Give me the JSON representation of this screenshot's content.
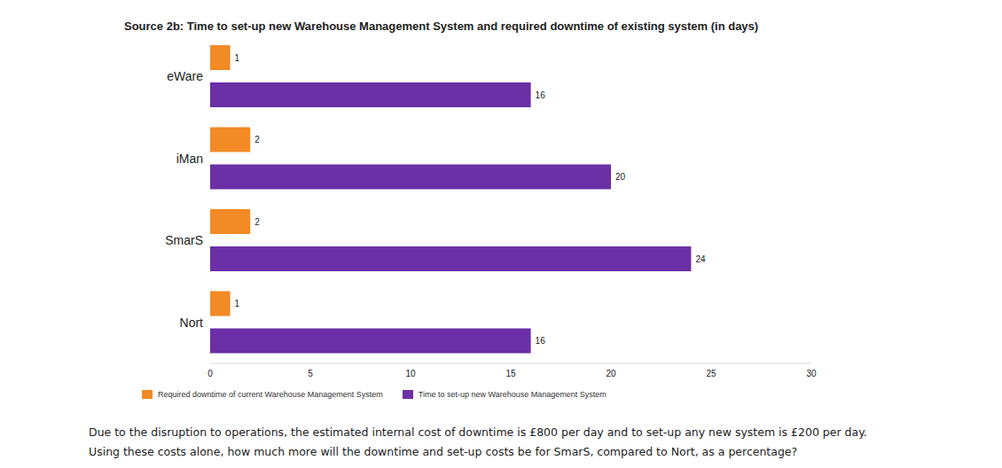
{
  "chart_data": {
    "type": "bar",
    "orientation": "horizontal",
    "title": "Source 2b: Time to set-up new Warehouse Management System and required downtime of existing system (in days)",
    "categories": [
      "eWare",
      "iMan",
      "SmarS",
      "Nort"
    ],
    "series": [
      {
        "name": "Required downtime of current Warehouse Management System",
        "color": "#f28a26",
        "values": [
          1,
          2,
          2,
          1
        ]
      },
      {
        "name": "Time to set-up new Warehouse Management System",
        "color": "#6b2fa6",
        "values": [
          16,
          20,
          24,
          16
        ]
      }
    ],
    "xlim": [
      0,
      30
    ],
    "xticks": [
      0,
      5,
      10,
      15,
      20,
      25,
      30
    ],
    "grid": false,
    "legend": "bottom",
    "data_labels": true,
    "annotations": [
      "Due to the disruption to operations, the estimated internal cost of downtime is £800 per day and to set-up any new system is £200 per day.",
      "Using these costs alone, how much more will the downtime and set-up costs be for SmarS, compared to Nort, as a percentage?"
    ]
  }
}
